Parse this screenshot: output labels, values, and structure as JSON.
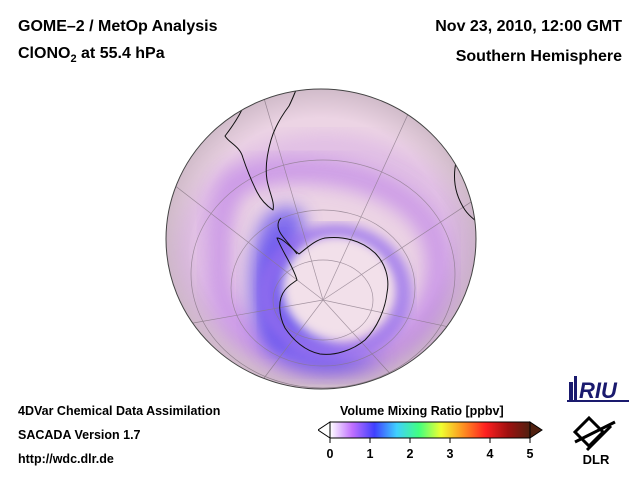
{
  "header": {
    "title_line1": "GOME–2 / MetOp Analysis",
    "species_main": "ClONO",
    "species_sub": "2",
    "species_level": " at 55.4 hPa",
    "datetime": "Nov 23, 2010, 12:00 GMT",
    "region": "Southern Hemisphere"
  },
  "footer": {
    "line1": "4DVar Chemical Data Assimilation",
    "line2": "SACADA Version 1.7",
    "line3": "http://wdc.dlr.de"
  },
  "colorbar": {
    "title": "Volume Mixing Ratio [ppbv]",
    "ticks": [
      "0",
      "1",
      "2",
      "3",
      "4",
      "5"
    ],
    "colors": [
      "#ffffff",
      "#c070ff",
      "#4040ff",
      "#40d0ff",
      "#40ff80",
      "#f0ff30",
      "#ff9020",
      "#ff2020",
      "#a01010",
      "#502010"
    ]
  },
  "logos": {
    "riu": "RIU",
    "dlr": "DLR"
  },
  "map": {
    "projection": "orthographic",
    "hemisphere": "south",
    "background_color": "#ecd4e4",
    "low_color": "#6c58f0",
    "mid_color": "#c58ee8"
  }
}
